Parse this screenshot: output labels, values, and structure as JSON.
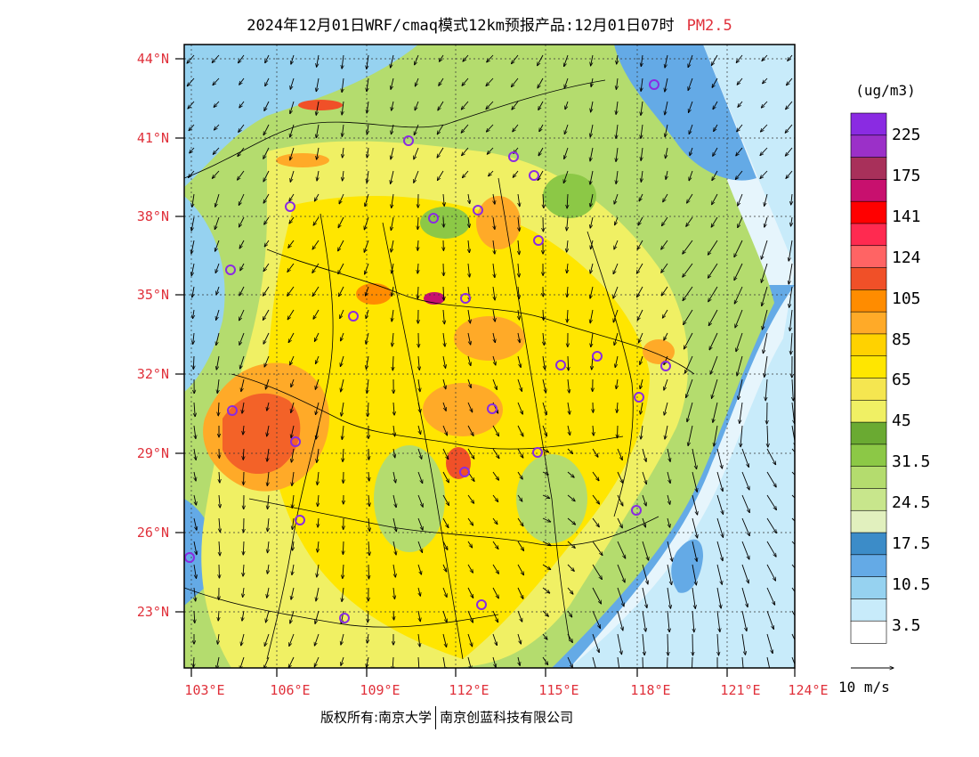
{
  "title": {
    "text": "2024年12月01日WRF/cmaq模式12km预报产品:12月01日07时",
    "pollutant": "PM2.5"
  },
  "axes": {
    "lat_labels": [
      "44°N",
      "41°N",
      "38°N",
      "35°N",
      "32°N",
      "29°N",
      "26°N",
      "23°N"
    ],
    "lat_values": [
      44,
      41,
      38,
      35,
      32,
      29,
      26,
      23
    ],
    "lon_labels": [
      "103°E",
      "106°E",
      "109°E",
      "112°E",
      "115°E",
      "118°E",
      "121°E",
      "124°E"
    ],
    "lon_values": [
      103,
      106,
      109,
      112,
      115,
      118,
      121,
      124
    ],
    "lat_range": [
      21,
      44.5
    ],
    "lon_range": [
      102.8,
      125
    ]
  },
  "colorbar": {
    "unit": "(ug/m3)",
    "labels": [
      "225",
      "175",
      "141",
      "124",
      "105",
      "85",
      "65",
      "45",
      "31.5",
      "24.5",
      "17.5",
      "10.5",
      "3.5"
    ],
    "colors": [
      "#8a2be2",
      "#9b30c8",
      "#a8305a",
      "#c8106e",
      "#ff0000",
      "#ff2a50",
      "#ff6464",
      "#f05028",
      "#ff8c00",
      "#ffaa28",
      "#ffd200",
      "#ffe600",
      "#f5e650",
      "#f0f064",
      "#6aaa32",
      "#8cc846",
      "#b4dc6e",
      "#c8e68c",
      "#e1f0be",
      "#3c8cc8",
      "#64aae6",
      "#96d2f0",
      "#c8ebfa",
      "#ffffff"
    ]
  },
  "wind_reference": {
    "label": "10 m/s"
  },
  "copyright": {
    "left": "版权所有:南京大学",
    "right": "南京创蓝科技有限公司"
  }
}
